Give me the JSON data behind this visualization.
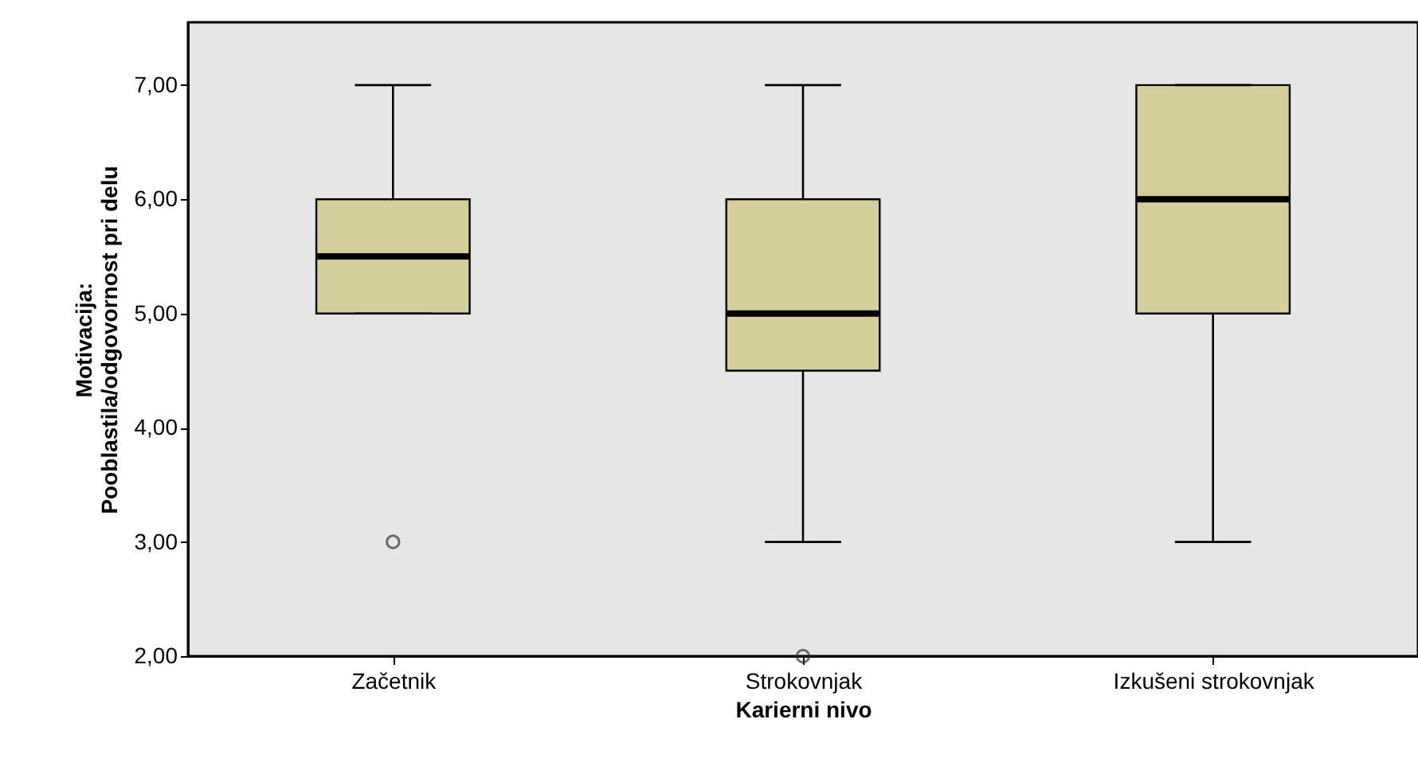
{
  "chart_data": {
    "type": "box",
    "xlabel": "Karierni nivo",
    "ylabel": "Motivacija:\nPooblastila/odgovornost pri delu",
    "categories": [
      "Začetnik",
      "Strokovnjak",
      "Izkušeni strokovnjak"
    ],
    "boxes": [
      {
        "low": 5,
        "q1": 5,
        "median": 5.5,
        "q3": 6,
        "high": 7,
        "outliers": [
          3
        ]
      },
      {
        "low": 3,
        "q1": 4.5,
        "median": 5,
        "q3": 6,
        "high": 7,
        "outliers": [
          2
        ]
      },
      {
        "low": 3,
        "q1": 5,
        "median": 6,
        "q3": 7,
        "high": 7
      }
    ],
    "color": "#d3ce9b",
    "ylim": [
      2,
      7.55
    ],
    "yticks": [
      {
        "value": 2,
        "label": "2,00"
      },
      {
        "value": 3,
        "label": "3,00"
      },
      {
        "value": 4,
        "label": "4,00"
      },
      {
        "value": 5,
        "label": "5,00"
      },
      {
        "value": 6,
        "label": "6,00"
      },
      {
        "value": 7,
        "label": "7,00"
      }
    ],
    "grid": false
  }
}
